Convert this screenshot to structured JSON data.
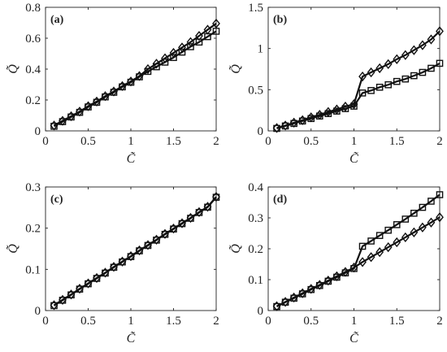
{
  "chart_data": [
    {
      "type": "line",
      "panel_label": "(a)",
      "xlabel": "C̃",
      "ylabel": "Q̃",
      "xlim": [
        0,
        2
      ],
      "ylim": [
        0,
        0.8
      ],
      "xticks": [
        0,
        0.5,
        1,
        1.5,
        2
      ],
      "xtick_labels": [
        "0",
        "0.5",
        "1",
        "1.5",
        "2"
      ],
      "yticks": [
        0,
        0.2,
        0.4,
        0.6,
        0.8
      ],
      "ytick_labels": [
        "0",
        "0.2",
        "0.4",
        "0.6",
        "0.8"
      ],
      "grid": false,
      "series": [
        {
          "marker": "square",
          "x": [
            0.1,
            0.2,
            0.3,
            0.4,
            0.5,
            0.6,
            0.7,
            0.8,
            0.9,
            1.0,
            1.1,
            1.2,
            1.3,
            1.4,
            1.5,
            1.6,
            1.7,
            1.8,
            1.9,
            2.0
          ],
          "values": [
            0.03,
            0.06,
            0.09,
            0.12,
            0.155,
            0.185,
            0.22,
            0.25,
            0.285,
            0.315,
            0.35,
            0.385,
            0.415,
            0.445,
            0.475,
            0.51,
            0.545,
            0.575,
            0.61,
            0.645
          ]
        },
        {
          "marker": "diamond",
          "x": [
            0.1,
            0.2,
            0.3,
            0.4,
            0.5,
            0.6,
            0.7,
            0.8,
            0.9,
            1.0,
            1.1,
            1.2,
            1.3,
            1.4,
            1.5,
            1.6,
            1.7,
            1.8,
            1.9,
            2.0
          ],
          "values": [
            0.035,
            0.065,
            0.095,
            0.125,
            0.16,
            0.19,
            0.225,
            0.255,
            0.29,
            0.32,
            0.355,
            0.4,
            0.435,
            0.47,
            0.505,
            0.54,
            0.575,
            0.615,
            0.655,
            0.695
          ]
        }
      ]
    },
    {
      "type": "line",
      "panel_label": "(b)",
      "xlabel": "C̃",
      "ylabel": "Q̃",
      "xlim": [
        0,
        2
      ],
      "ylim": [
        0,
        1.5
      ],
      "xticks": [
        0,
        0.5,
        1,
        1.5,
        2
      ],
      "xtick_labels": [
        "0",
        "0.5",
        "1",
        "1.5",
        "2"
      ],
      "yticks": [
        0,
        0.5,
        1,
        1.5
      ],
      "ytick_labels": [
        "0",
        "0.5",
        "1",
        "1.5"
      ],
      "grid": false,
      "series": [
        {
          "marker": "square",
          "x": [
            0.1,
            0.2,
            0.3,
            0.4,
            0.5,
            0.6,
            0.7,
            0.8,
            0.9,
            1.0,
            1.1,
            1.2,
            1.3,
            1.4,
            1.5,
            1.6,
            1.7,
            1.8,
            1.9,
            2.0
          ],
          "values": [
            0.03,
            0.06,
            0.09,
            0.12,
            0.15,
            0.18,
            0.21,
            0.24,
            0.27,
            0.3,
            0.46,
            0.49,
            0.53,
            0.56,
            0.6,
            0.63,
            0.67,
            0.71,
            0.76,
            0.82
          ]
        },
        {
          "marker": "diamond",
          "x": [
            0.1,
            0.2,
            0.3,
            0.4,
            0.5,
            0.6,
            0.7,
            0.8,
            0.9,
            1.0,
            1.1,
            1.2,
            1.3,
            1.4,
            1.5,
            1.6,
            1.7,
            1.8,
            1.9,
            2.0
          ],
          "values": [
            0.035,
            0.065,
            0.1,
            0.13,
            0.165,
            0.195,
            0.23,
            0.26,
            0.295,
            0.325,
            0.66,
            0.71,
            0.76,
            0.81,
            0.87,
            0.92,
            0.98,
            1.04,
            1.11,
            1.21
          ]
        }
      ]
    },
    {
      "type": "line",
      "panel_label": "(c)",
      "xlabel": "C̃",
      "ylabel": "Q̃",
      "xlim": [
        0,
        2
      ],
      "ylim": [
        0,
        0.3
      ],
      "xticks": [
        0,
        0.5,
        1,
        1.5,
        2
      ],
      "xtick_labels": [
        "0",
        "0.5",
        "1",
        "1.5",
        "2"
      ],
      "yticks": [
        0,
        0.1,
        0.2,
        0.3
      ],
      "ytick_labels": [
        "0",
        "0.1",
        "0.2",
        "0.3"
      ],
      "grid": false,
      "series": [
        {
          "marker": "square",
          "x": [
            0.1,
            0.2,
            0.3,
            0.4,
            0.5,
            0.6,
            0.7,
            0.8,
            0.9,
            1.0,
            1.1,
            1.2,
            1.3,
            1.4,
            1.5,
            1.6,
            1.7,
            1.8,
            1.9,
            2.0
          ],
          "values": [
            0.012,
            0.025,
            0.038,
            0.052,
            0.065,
            0.078,
            0.091,
            0.105,
            0.118,
            0.131,
            0.145,
            0.158,
            0.171,
            0.185,
            0.198,
            0.211,
            0.224,
            0.238,
            0.251,
            0.275
          ]
        },
        {
          "marker": "diamond",
          "x": [
            0.1,
            0.2,
            0.3,
            0.4,
            0.5,
            0.6,
            0.7,
            0.8,
            0.9,
            1.0,
            1.1,
            1.2,
            1.3,
            1.4,
            1.5,
            1.6,
            1.7,
            1.8,
            1.9,
            2.0
          ],
          "values": [
            0.013,
            0.026,
            0.039,
            0.053,
            0.066,
            0.079,
            0.092,
            0.106,
            0.119,
            0.132,
            0.146,
            0.159,
            0.172,
            0.186,
            0.199,
            0.212,
            0.225,
            0.239,
            0.252,
            0.276
          ]
        }
      ]
    },
    {
      "type": "line",
      "panel_label": "(d)",
      "xlabel": "C̃",
      "ylabel": "Q̃",
      "xlim": [
        0,
        2
      ],
      "ylim": [
        0,
        0.4
      ],
      "xticks": [
        0,
        0.5,
        1,
        1.5,
        2
      ],
      "xtick_labels": [
        "0",
        "0.5",
        "1",
        "1.5",
        "2"
      ],
      "yticks": [
        0,
        0.1,
        0.2,
        0.3,
        0.4
      ],
      "ytick_labels": [
        "0",
        "0.1",
        "0.2",
        "0.3",
        "0.4"
      ],
      "grid": false,
      "series": [
        {
          "marker": "square",
          "x": [
            0.1,
            0.2,
            0.3,
            0.4,
            0.5,
            0.6,
            0.7,
            0.8,
            0.9,
            1.0,
            1.1,
            1.2,
            1.3,
            1.4,
            1.5,
            1.6,
            1.7,
            1.8,
            1.9,
            2.0
          ],
          "values": [
            0.013,
            0.027,
            0.04,
            0.054,
            0.068,
            0.081,
            0.095,
            0.108,
            0.122,
            0.136,
            0.208,
            0.225,
            0.243,
            0.26,
            0.278,
            0.296,
            0.315,
            0.334,
            0.354,
            0.375
          ]
        },
        {
          "marker": "diamond",
          "x": [
            0.1,
            0.2,
            0.3,
            0.4,
            0.5,
            0.6,
            0.7,
            0.8,
            0.9,
            1.0,
            1.1,
            1.2,
            1.3,
            1.4,
            1.5,
            1.6,
            1.7,
            1.8,
            1.9,
            2.0
          ],
          "values": [
            0.014,
            0.028,
            0.042,
            0.056,
            0.07,
            0.083,
            0.097,
            0.111,
            0.125,
            0.139,
            0.157,
            0.173,
            0.189,
            0.205,
            0.221,
            0.237,
            0.253,
            0.269,
            0.285,
            0.302
          ]
        }
      ]
    }
  ]
}
